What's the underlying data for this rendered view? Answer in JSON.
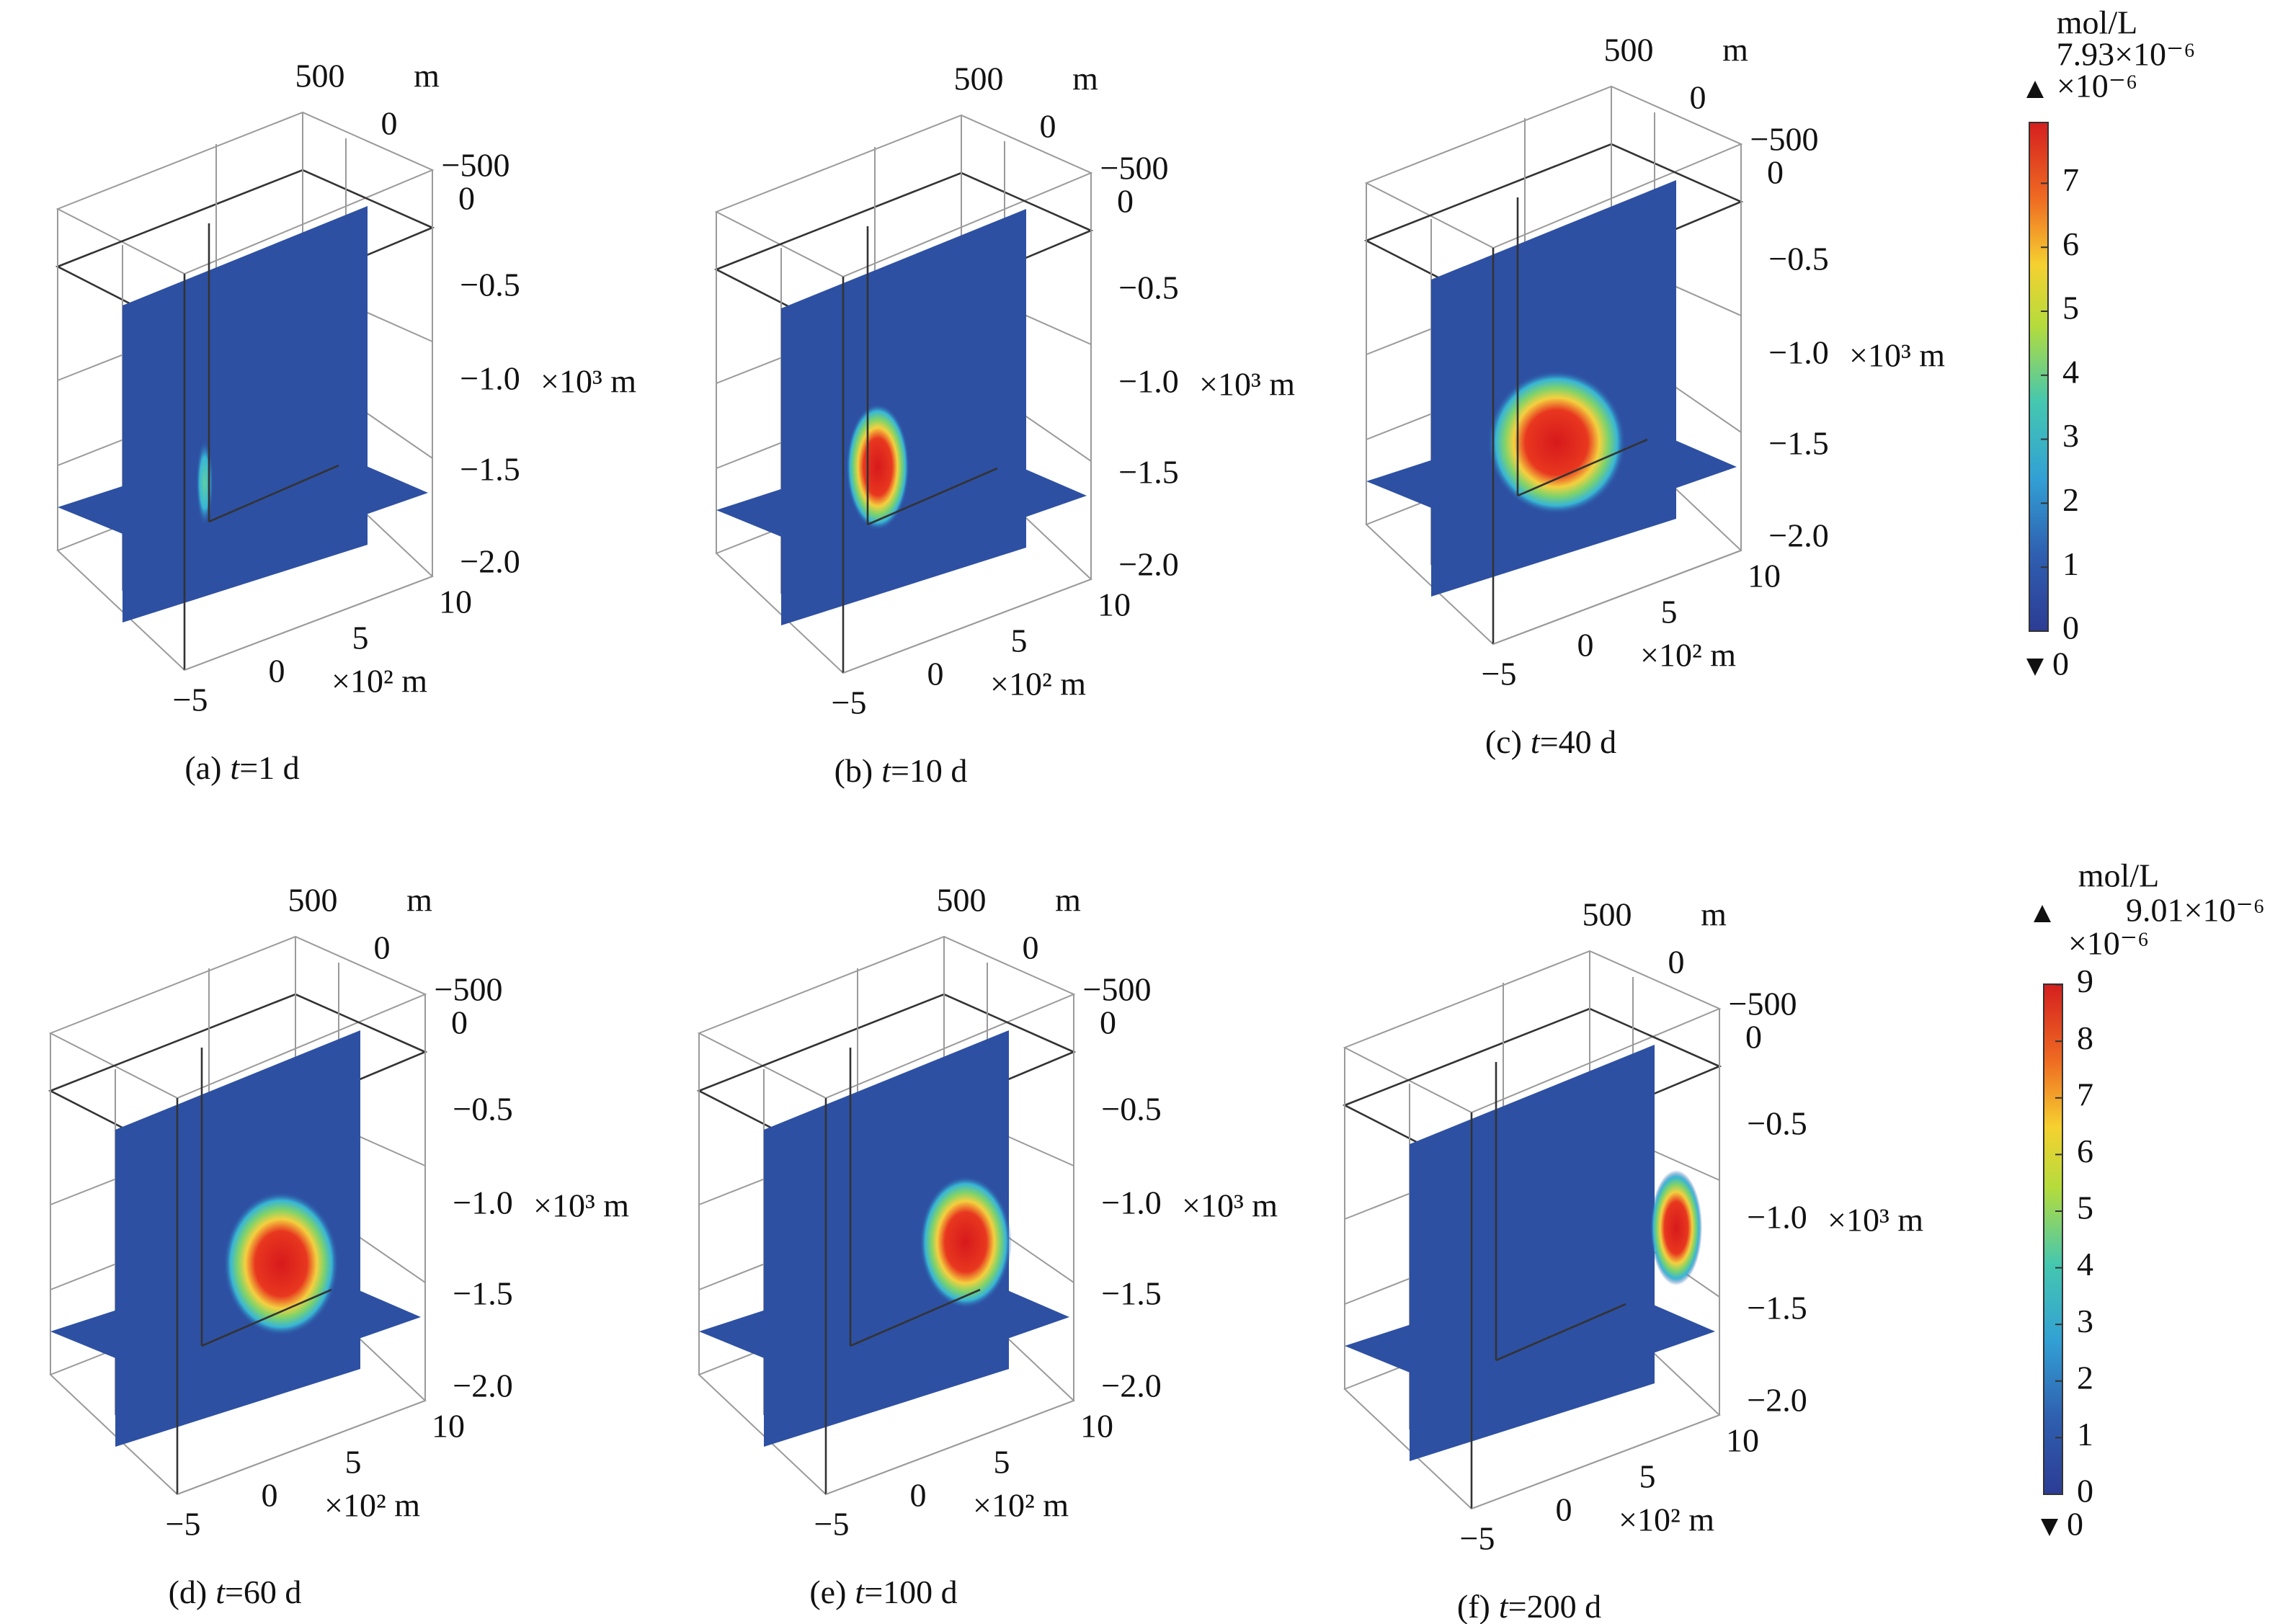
{
  "panels": [
    {
      "caption": {
        "label": "(a)",
        "var": "t",
        "rest": "=1 d"
      },
      "axes": {
        "y_top": "500",
        "y_unit": "m",
        "y_mid": "0",
        "y_end": "−500",
        "z_ticks": [
          "0",
          "−0.5",
          "−1.0",
          "−1.5",
          "−2.0"
        ],
        "z_unit": "×10³ m",
        "x_ticks": [
          "10",
          "5",
          "0",
          "−5"
        ],
        "x_unit": "×10² m"
      }
    },
    {
      "caption": {
        "label": "(b)",
        "var": "t",
        "rest": "=10 d"
      },
      "axes": {
        "y_top": "500",
        "y_unit": "m",
        "y_mid": "0",
        "y_end": "−500",
        "z_ticks": [
          "0",
          "−0.5",
          "−1.0",
          "−1.5",
          "−2.0"
        ],
        "z_unit": "×10³ m",
        "x_ticks": [
          "10",
          "5",
          "0",
          "−5"
        ],
        "x_unit": "×10² m"
      }
    },
    {
      "caption": {
        "label": "(c)",
        "var": "t",
        "rest": "=40 d"
      },
      "axes": {
        "y_top": "500",
        "y_unit": "m",
        "y_mid": "0",
        "y_end": "−500",
        "z_ticks": [
          "0",
          "−0.5",
          "−1.0",
          "−1.5",
          "−2.0"
        ],
        "z_unit": "×10³ m",
        "x_ticks": [
          "10",
          "5",
          "0",
          "−5"
        ],
        "x_unit": "×10² m"
      }
    },
    {
      "caption": {
        "label": "(d)",
        "var": "t",
        "rest": "=60 d"
      },
      "axes": {
        "y_top": "500",
        "y_unit": "m",
        "y_mid": "0",
        "y_end": "−500",
        "z_ticks": [
          "0",
          "−0.5",
          "−1.0",
          "−1.5",
          "−2.0"
        ],
        "z_unit": "×10³ m",
        "x_ticks": [
          "10",
          "5",
          "0",
          "−5"
        ],
        "x_unit": "×10² m"
      }
    },
    {
      "caption": {
        "label": "(e)",
        "var": "t",
        "rest": "=100 d"
      },
      "axes": {
        "y_top": "500",
        "y_unit": "m",
        "y_mid": "0",
        "y_end": "−500",
        "z_ticks": [
          "0",
          "−0.5",
          "−1.0",
          "−1.5",
          "−2.0"
        ],
        "z_unit": "×10³ m",
        "x_ticks": [
          "10",
          "5",
          "0",
          "−5"
        ],
        "x_unit": "×10² m"
      }
    },
    {
      "caption": {
        "label": "(f)",
        "var": "t",
        "rest": "=200 d"
      },
      "axes": {
        "y_top": "500",
        "y_unit": "m",
        "y_mid": "0",
        "y_end": "−500",
        "z_ticks": [
          "0",
          "−0.5",
          "−1.0",
          "−1.5",
          "−2.0"
        ],
        "z_unit": "×10³ m",
        "x_ticks": [
          "10",
          "5",
          "0",
          "−5"
        ],
        "x_unit": "×10² m"
      }
    }
  ],
  "colorbars": [
    {
      "unit": "mol/L",
      "max": "7.93×10⁻⁶",
      "scale": "×10⁻⁶",
      "ticks": [
        "0",
        "1",
        "2",
        "3",
        "4",
        "5",
        "6",
        "7"
      ],
      "min": "0"
    },
    {
      "unit": "mol/L",
      "max": "9.01×10⁻⁶",
      "scale": "×10⁻⁶",
      "ticks": [
        "0",
        "1",
        "2",
        "3",
        "4",
        "5",
        "6",
        "7",
        "8",
        "9"
      ],
      "min": "0"
    }
  ]
}
